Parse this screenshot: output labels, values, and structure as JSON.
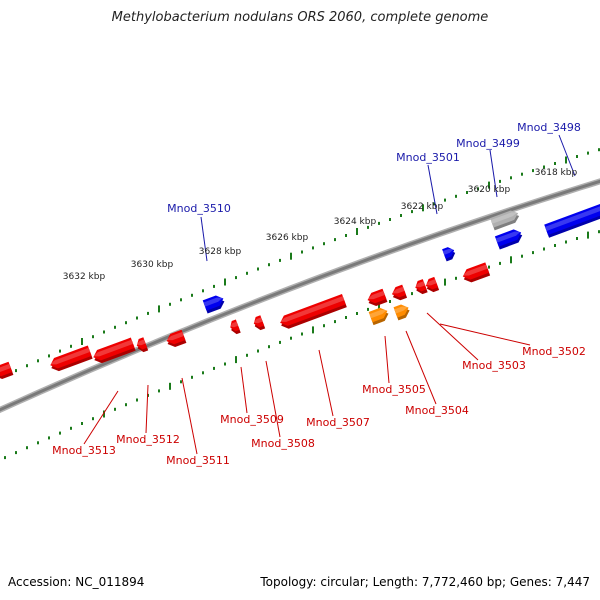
{
  "title": "Methylobacterium nodulans ORS 2060, complete genome",
  "footer": {
    "accession": "Accession: NC_011894",
    "topology": "Topology: circular; Length: 7,772,460 bp; Genes: 7,447"
  },
  "colors": {
    "backbone": "#7a7a7a",
    "tick": "#1a7a1a",
    "forward_gene": "#0000ee",
    "reverse_gene": "#ee0000",
    "highlight_gene": "#ff8c00",
    "pseudo_gene": "#b0b0b0",
    "forward_label": "#1a1aaa",
    "reverse_label": "#cc0000"
  },
  "scale_labels": [
    "3618 kbp",
    "3620 kbp",
    "3622 kbp",
    "3624 kbp",
    "3626 kbp",
    "3628 kbp",
    "3630 kbp",
    "3632 kbp"
  ],
  "forward_labels": [
    "Mnod_3498",
    "Mnod_3499",
    "Mnod_3501",
    "Mnod_3510"
  ],
  "reverse_labels": [
    "Mnod_3502",
    "Mnod_3503",
    "Mnod_3504",
    "Mnod_3505",
    "Mnod_3507",
    "Mnod_3508",
    "Mnod_3509",
    "Mnod_3511",
    "Mnod_3512",
    "Mnod_3513"
  ]
}
